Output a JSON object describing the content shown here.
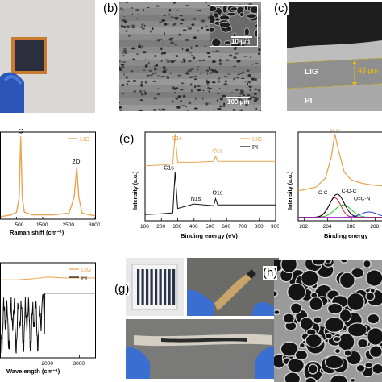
{
  "panels": {
    "b": "(b)",
    "c": "(c)",
    "e": "(e)",
    "g": "(g)",
    "h": "(h)"
  },
  "sem_b": {
    "inset_scale": "10 μm",
    "main_scale": "100 μm"
  },
  "sem_c": {
    "layer_top": "LIG",
    "layer_bottom": "PI",
    "thickness": "43 μm"
  },
  "raman": {
    "legend": "LIG",
    "peaks": [
      "G",
      "2D"
    ],
    "xlabel": "Raman shift (cm⁻¹)",
    "ticks": [
      "500",
      "1000",
      "1500",
      "2000",
      "2500",
      "3000"
    ]
  },
  "xps_survey": {
    "legend": [
      "LIG",
      "PI"
    ],
    "peaks": [
      "C1s",
      "O1s",
      "C1s",
      "N1s",
      "O1s"
    ],
    "ylabel": "Intensity (a.u.)",
    "xlabel": "Binding energy (eV)",
    "ticks": [
      "100",
      "200",
      "300",
      "400",
      "500",
      "600",
      "700",
      "800",
      "900"
    ]
  },
  "xps_c1s": {
    "peaks": [
      "C-C",
      "C-C",
      "C-O-C",
      "O=C-N"
    ],
    "ylabel": "Intensity (a.u.)",
    "xlabel": "Binding energy",
    "ticks": [
      "282",
      "284",
      "286",
      "288"
    ]
  },
  "ftir": {
    "legend": [
      "LIG",
      "PI"
    ],
    "xlabel": "Wavelength (cm⁻¹)",
    "ticks": [
      "2000",
      "3000"
    ]
  },
  "colors": {
    "lig": "#e8a552",
    "pi": "#111111",
    "fit_red": "#e0202a",
    "fit_green": "#28c23a",
    "fit_blue": "#2a3fd6",
    "fit_magenta": "#c030c0"
  },
  "chart_data": [
    {
      "type": "line",
      "x": [
        1200,
        1400,
        1500,
        1550,
        1580,
        1610,
        1650,
        1800,
        2200,
        2500,
        2600,
        2650,
        2690,
        2750,
        2900,
        3000
      ],
      "series": [
        {
          "name": "LIG",
          "values": [
            0.03,
            0.05,
            0.08,
            0.25,
            0.95,
            0.25,
            0.08,
            0.05,
            0.05,
            0.07,
            0.25,
            0.6,
            0.25,
            0.07,
            0.05,
            0.04
          ]
        }
      ],
      "xlabel": "Raman shift (cm⁻¹)",
      "xlim": [
        1200,
        3000
      ]
    },
    {
      "type": "line",
      "x": [
        100,
        200,
        270,
        284,
        300,
        400,
        520,
        532,
        545,
        700,
        900
      ],
      "series": [
        {
          "name": "LIG",
          "values": [
            0.62,
            0.63,
            0.64,
            0.98,
            0.66,
            0.66,
            0.67,
            0.73,
            0.67,
            0.67,
            0.67
          ]
        },
        {
          "name": "PI",
          "values": [
            0.07,
            0.08,
            0.09,
            0.55,
            0.14,
            0.19,
            0.17,
            0.25,
            0.18,
            0.18,
            0.18
          ]
        }
      ],
      "ylabel": "Intensity (a.u.)",
      "xlabel": "Binding energy (eV)",
      "xlim": [
        100,
        900
      ]
    },
    {
      "type": "line",
      "x": [
        281.5,
        282,
        283,
        283.8,
        284.3,
        284.6,
        284.9,
        285.4,
        286,
        287,
        288,
        289
      ],
      "series": [
        {
          "name": "LIG",
          "values": [
            0.34,
            0.35,
            0.38,
            0.48,
            0.72,
            0.98,
            0.8,
            0.55,
            0.46,
            0.42,
            0.4,
            0.39
          ]
        }
      ],
      "ylabel": "Intensity (a.u.)",
      "xlabel": "Binding energy",
      "xlim": [
        281.5,
        289
      ]
    },
    {
      "type": "line",
      "x": [
        500,
        1000,
        1500,
        2000,
        2500,
        3000,
        3500
      ],
      "series": [
        {
          "name": "LIG",
          "values": [
            0.82,
            0.82,
            0.83,
            0.85,
            0.84,
            0.84,
            0.84
          ]
        },
        {
          "name": "PI",
          "values": [
            0.3,
            0.25,
            0.45,
            0.7,
            0.7,
            0.68,
            0.68
          ]
        }
      ],
      "xlabel": "Wavelength (cm⁻¹)",
      "xlim": [
        500,
        3500
      ]
    }
  ]
}
